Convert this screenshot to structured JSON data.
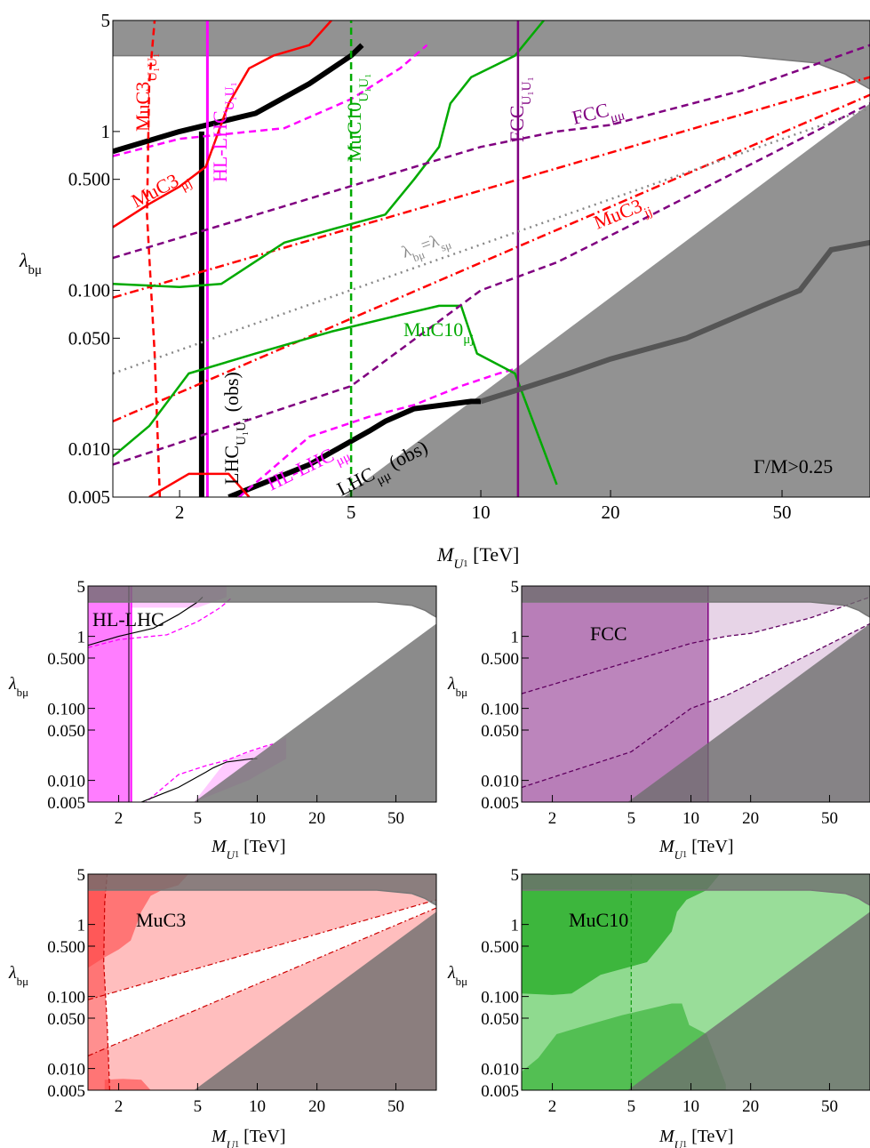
{
  "chart_data": [
    {
      "type": "line",
      "panel": "main",
      "x_scale": "log",
      "y_scale": "log",
      "xlim": [
        1.4,
        80
      ],
      "ylim": [
        0.005,
        5
      ],
      "xlabel": "M",
      "xlabel_sub": "U",
      "xlabel_subsub": "1",
      "xlabel_unit": " [TeV]",
      "ylabel": "λ",
      "ylabel_sub": "bμ",
      "x_ticks": [
        2,
        5,
        10,
        20,
        50
      ],
      "x_tick_labels": [
        "2",
        "5",
        "10",
        "20",
        "50"
      ],
      "y_ticks": [
        0.005,
        0.01,
        0.05,
        0.1,
        0.5,
        1,
        5
      ],
      "y_tick_labels": [
        "0.005",
        "0.010",
        "0.050",
        "0.100",
        "0.500",
        "1",
        "5"
      ],
      "annotation": "Γ/M>0.25",
      "grey_regions": {
        "top_band_lambda_above": 3.0,
        "width_constraint_boundary": [
          [
            1.4,
            3.0
          ],
          [
            40,
            3.0
          ],
          [
            60,
            2.7
          ],
          [
            70,
            2.3
          ],
          [
            76,
            2.0
          ],
          [
            80,
            1.85
          ]
        ],
        "lower_triangle_diagonal": [
          [
            4.8,
            0.005
          ],
          [
            80,
            1.5
          ]
        ]
      },
      "series": [
        {
          "name": "LHC",
          "subscript": "U1U1",
          "suffix": " (obs)",
          "color": "#000000",
          "style": "solid",
          "width": 6,
          "points": [
            [
              2.25,
              0.005
            ],
            [
              2.25,
              1.0
            ]
          ]
        },
        {
          "name": "LHC",
          "subscript": "μμ",
          "suffix": " (obs)",
          "color": "#000000",
          "style": "solid",
          "width": 6,
          "points": [
            [
              1.4,
              0.75
            ],
            [
              2.0,
              1.0
            ],
            [
              3.0,
              1.3
            ],
            [
              4.0,
              2.0
            ],
            [
              5.0,
              3.0
            ],
            [
              5.3,
              3.5
            ]
          ]
        },
        {
          "name": "LHC μμ low",
          "color": "#000000",
          "style": "solid",
          "width": 6,
          "points": [
            [
              2.6,
              0.005
            ],
            [
              4.0,
              0.008
            ],
            [
              5.5,
              0.013
            ],
            [
              6.0,
              0.015
            ],
            [
              7.0,
              0.018
            ],
            [
              9.5,
              0.02
            ],
            [
              10,
              0.02
            ]
          ]
        },
        {
          "name": "HL-LHC",
          "subscript": "U1U1",
          "color": "#ff00ff",
          "style": "solid",
          "width": 3,
          "points": [
            [
              2.32,
              0.005
            ],
            [
              2.32,
              5
            ]
          ]
        },
        {
          "name": "HL-LHC",
          "subscript": "μμ",
          "color": "#ff00ff",
          "style": "dashed",
          "width": 2.5,
          "points": [
            [
              1.4,
              0.7
            ],
            [
              2.0,
              0.9
            ],
            [
              3.5,
              1.05
            ],
            [
              5.0,
              1.6
            ],
            [
              6.5,
              2.5
            ],
            [
              7.5,
              3.5
            ]
          ]
        },
        {
          "name": "HL-LHC μμ low",
          "color": "#ff00ff",
          "style": "dashed",
          "width": 2.5,
          "points": [
            [
              2.5,
              0.004
            ],
            [
              4.0,
              0.012
            ],
            [
              5.5,
              0.016
            ],
            [
              7.0,
              0.019
            ],
            [
              9.0,
              0.025
            ],
            [
              11,
              0.03
            ],
            [
              12,
              0.032
            ]
          ]
        },
        {
          "name": "MuC3",
          "subscript": "U1U1",
          "color": "#ff0000",
          "style": "dashed",
          "width": 2.5,
          "points": [
            [
              1.8,
              0.005
            ],
            [
              1.75,
              0.04
            ],
            [
              1.68,
              0.3
            ],
            [
              1.7,
              2.0
            ],
            [
              1.75,
              5
            ]
          ]
        },
        {
          "name": "MuC3",
          "subscript": "μj",
          "color": "#ff0000",
          "style": "solid",
          "width": 2.5,
          "points": [
            [
              1.4,
              0.25
            ],
            [
              1.7,
              0.35
            ],
            [
              2.0,
              0.45
            ],
            [
              2.3,
              0.6
            ],
            [
              2.6,
              1.5
            ],
            [
              2.9,
              2.5
            ],
            [
              3.3,
              3.0
            ],
            [
              4.0,
              3.5
            ],
            [
              4.5,
              5
            ]
          ]
        },
        {
          "name": "MuC3 μj low",
          "color": "#ff0000",
          "style": "solid",
          "width": 2.5,
          "points": [
            [
              1.7,
              0.005
            ],
            [
              2.1,
              0.007
            ],
            [
              2.6,
              0.007
            ],
            [
              2.9,
              0.005
            ]
          ]
        },
        {
          "name": "MuC3",
          "subscript": "jj",
          "color": "#ff0000",
          "style": "dashdot",
          "width": 2.5,
          "points": [
            [
              1.4,
              0.09
            ],
            [
              80,
              2.2
            ]
          ]
        },
        {
          "name": "MuC3 jj lower",
          "color": "#ff0000",
          "style": "dashdot",
          "width": 2.5,
          "points": [
            [
              1.4,
              0.015
            ],
            [
              80,
              1.7
            ]
          ]
        },
        {
          "name": "MuC10",
          "subscript": "U1U1",
          "color": "#00aa00",
          "style": "dashed",
          "width": 2.5,
          "points": [
            [
              5.0,
              0.005
            ],
            [
              5.0,
              5
            ]
          ]
        },
        {
          "name": "MuC10",
          "subscript": "μj",
          "color": "#00aa00",
          "style": "solid",
          "width": 2.5,
          "points": [
            [
              1.4,
              0.11
            ],
            [
              2.0,
              0.105
            ],
            [
              2.5,
              0.11
            ],
            [
              3.5,
              0.2
            ],
            [
              6.0,
              0.3
            ],
            [
              7.0,
              0.5
            ],
            [
              8.0,
              0.8
            ],
            [
              8.5,
              1.5
            ],
            [
              9.5,
              2.2
            ],
            [
              12,
              3.0
            ],
            [
              14,
              5
            ]
          ]
        },
        {
          "name": "MuC10 μj low",
          "color": "#00aa00",
          "style": "solid",
          "width": 2.5,
          "points": [
            [
              1.4,
              0.009
            ],
            [
              1.7,
              0.014
            ],
            [
              2.1,
              0.03
            ],
            [
              3.0,
              0.04
            ],
            [
              4.5,
              0.055
            ],
            [
              6.5,
              0.07
            ],
            [
              8.0,
              0.08
            ],
            [
              9.0,
              0.08
            ],
            [
              9.8,
              0.04
            ],
            [
              12,
              0.03
            ],
            [
              15,
              0.006
            ]
          ]
        },
        {
          "name": "FCC",
          "subscript": "U1U1",
          "color": "#800080",
          "style": "solid",
          "width": 2.5,
          "points": [
            [
              12.2,
              0.005
            ],
            [
              12.2,
              5
            ]
          ]
        },
        {
          "name": "FCC",
          "subscript": "μμ",
          "color": "#800080",
          "style": "dashed",
          "width": 2.5,
          "points": [
            [
              1.4,
              0.16
            ],
            [
              10,
              0.8
            ],
            [
              15,
              1.0
            ],
            [
              20,
              1.1
            ],
            [
              40,
              1.8
            ],
            [
              80,
              3.5
            ]
          ]
        },
        {
          "name": "FCC μμ lower",
          "color": "#800080",
          "style": "dashed",
          "width": 2.5,
          "points": [
            [
              1.4,
              0.008
            ],
            [
              5,
              0.025
            ],
            [
              10,
              0.1
            ],
            [
              15,
              0.15
            ],
            [
              25,
              0.3
            ],
            [
              80,
              1.5
            ]
          ]
        },
        {
          "name": "λ",
          "subscript": "bμ",
          "color": "#888888",
          "style": "dotted",
          "width": 2.5,
          "points": [
            [
              1.4,
              0.03
            ],
            [
              80,
              1.4
            ]
          ]
        }
      ],
      "labels": {
        "lhc_uu": {
          "base": "LHC",
          "sub": "U₁U₁",
          "suffix": " (obs)"
        },
        "lhc_mm": {
          "base": "LHC",
          "sub": "μμ",
          "suffix": " (obs)"
        },
        "hl_uu": {
          "base": "HL-LHC",
          "sub": "U₁U₁"
        },
        "hl_mm": {
          "base": "HL-LHC",
          "sub": "μμ"
        },
        "muc3_uu": {
          "base": "MuC3",
          "sub": "U₁U₁"
        },
        "muc3_mj": {
          "base": "MuC3",
          "sub": "μj"
        },
        "muc3_jj": {
          "base": "MuC3",
          "sub": "jj"
        },
        "muc10_uu": {
          "base": "MuC10",
          "sub": "U₁U₁"
        },
        "muc10_mj": {
          "base": "MuC10",
          "sub": "μj"
        },
        "fcc_uu": {
          "base": "FCC",
          "sub": "U₁U₁"
        },
        "fcc_mm": {
          "base": "FCC",
          "sub": "μμ"
        },
        "diag": {
          "base": "λ",
          "sub": "bμ",
          "mid": "=λ",
          "sub2": "sμ"
        }
      }
    },
    {
      "type": "area",
      "panel": "HL-LHC",
      "title": "HL-LHC",
      "x_scale": "log",
      "y_scale": "log",
      "xlim": [
        1.4,
        80
      ],
      "ylim": [
        0.005,
        5
      ],
      "x_ticks": [
        2,
        5,
        10,
        20,
        50
      ],
      "x_tick_labels": [
        "2",
        "5",
        "10",
        "20",
        "50"
      ],
      "y_tick_labels": [
        "0.005",
        "0.010",
        "0.050",
        "0.100",
        "0.500",
        "1",
        "5"
      ],
      "fill_color": "#ff66ff"
    },
    {
      "type": "area",
      "panel": "FCC",
      "title": "FCC",
      "x_scale": "log",
      "y_scale": "log",
      "xlim": [
        1.4,
        80
      ],
      "ylim": [
        0.005,
        5
      ],
      "x_ticks": [
        2,
        5,
        10,
        20,
        50
      ],
      "x_tick_labels": [
        "2",
        "5",
        "10",
        "20",
        "50"
      ],
      "y_tick_labels": [
        "0.005",
        "0.010",
        "0.050",
        "0.100",
        "0.500",
        "1",
        "5"
      ],
      "fill_color": "#b070b0"
    },
    {
      "type": "area",
      "panel": "MuC3",
      "title": "MuC3",
      "x_scale": "log",
      "y_scale": "log",
      "xlim": [
        1.4,
        80
      ],
      "ylim": [
        0.005,
        5
      ],
      "x_ticks": [
        2,
        5,
        10,
        20,
        50
      ],
      "x_tick_labels": [
        "2",
        "5",
        "10",
        "20",
        "50"
      ],
      "y_tick_labels": [
        "0.005",
        "0.010",
        "0.050",
        "0.100",
        "0.500",
        "1",
        "5"
      ],
      "fill_color": "#ff4444"
    },
    {
      "type": "area",
      "panel": "MuC10",
      "title": "MuC10",
      "x_scale": "log",
      "y_scale": "log",
      "xlim": [
        1.4,
        80
      ],
      "ylim": [
        0.005,
        5
      ],
      "x_ticks": [
        2,
        5,
        10,
        20,
        50
      ],
      "x_tick_labels": [
        "2",
        "5",
        "10",
        "20",
        "50"
      ],
      "y_tick_labels": [
        "0.005",
        "0.010",
        "0.050",
        "0.100",
        "0.500",
        "1",
        "5"
      ],
      "fill_color": "#33bb33"
    }
  ]
}
